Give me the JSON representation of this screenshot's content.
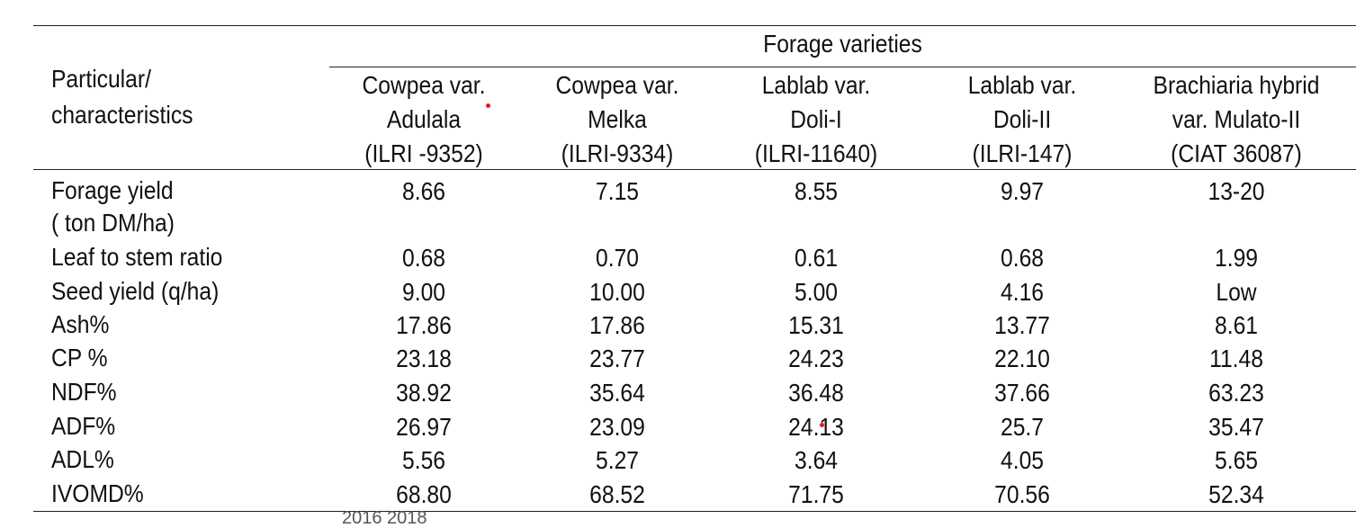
{
  "table": {
    "group_header": "Forage varieties",
    "row_header": "Particular/\ncharacteristics",
    "columns": [
      "Cowpea var.\nAdulala\n(ILRI -9352)",
      "Cowpea var.\nMelka\n(ILRI-9334)",
      "Lablab var.\nDoli-I\n(ILRI-11640)",
      "Lablab var.\nDoli-II\n(ILRI-147)",
      "Brachiaria hybrid\nvar. Mulato-II\n(CIAT 36087)"
    ],
    "rows": [
      {
        "label": "Forage yield\n( ton DM/ha)",
        "values": [
          "8.66",
          "7.15",
          "8.55",
          "9.97",
          "13-20"
        ]
      },
      {
        "label": "Leaf to stem ratio",
        "values": [
          "0.68",
          "0.70",
          "0.61",
          "0.68",
          "1.99"
        ]
      },
      {
        "label": "Seed yield (q/ha)",
        "values": [
          "9.00",
          "10.00",
          "5.00",
          "4.16",
          "Low"
        ]
      },
      {
        "label": "Ash%",
        "values": [
          "17.86",
          "17.86",
          "15.31",
          "13.77",
          "8.61"
        ]
      },
      {
        "label": "CP %",
        "values": [
          "23.18",
          "23.77",
          "24.23",
          "22.10",
          "11.48"
        ]
      },
      {
        "label": "NDF%",
        "values": [
          "38.92",
          "35.64",
          "36.48",
          "37.66",
          "63.23"
        ]
      },
      {
        "label": "ADF%",
        "values": [
          "26.97",
          "23.09",
          "24.13",
          "25.7",
          "35.47"
        ]
      },
      {
        "label": "ADL%",
        "values": [
          "5.56",
          "5.27",
          "3.64",
          "4.05",
          "5.65"
        ]
      },
      {
        "label": "IVOMD%",
        "values": [
          "68.80",
          "68.52",
          "71.75",
          "70.56",
          "52.34"
        ]
      }
    ]
  },
  "footnote": "2016     2018"
}
